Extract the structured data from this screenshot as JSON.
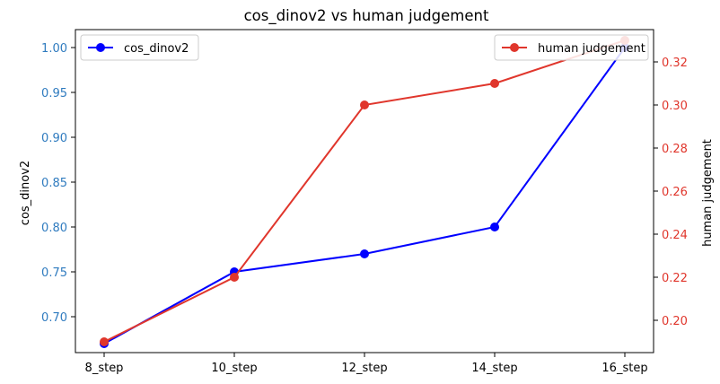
{
  "chart_data": {
    "type": "line",
    "title": "cos_dinov2 vs human judgement",
    "xlabel": "",
    "categories": [
      "8_step",
      "10_step",
      "12_step",
      "14_step",
      "16_step"
    ],
    "left_axis": {
      "label": "cos_dinov2",
      "range": [
        0.66,
        1.02
      ],
      "ticks": [
        "0.70",
        "0.75",
        "0.80",
        "0.85",
        "0.90",
        "0.95",
        "1.00"
      ],
      "tick_color": "#2f7bbf"
    },
    "right_axis": {
      "label": "human judgement",
      "range": [
        0.185,
        0.335
      ],
      "ticks": [
        "0.20",
        "0.22",
        "0.24",
        "0.26",
        "0.28",
        "0.30",
        "0.32"
      ],
      "tick_color": "#e0362c"
    },
    "series": [
      {
        "name": "cos_dinov2",
        "axis": "left",
        "color": "#0000ff",
        "values": [
          0.67,
          0.75,
          0.77,
          0.8,
          1.0
        ]
      },
      {
        "name": "human judgement",
        "axis": "right",
        "color": "#e0362c",
        "values": [
          0.19,
          0.22,
          0.3,
          0.31,
          0.33
        ]
      }
    ],
    "legends": [
      {
        "series": "cos_dinov2",
        "placement": "upper-left"
      },
      {
        "series": "human judgement",
        "placement": "upper-right"
      }
    ],
    "grid": false
  }
}
